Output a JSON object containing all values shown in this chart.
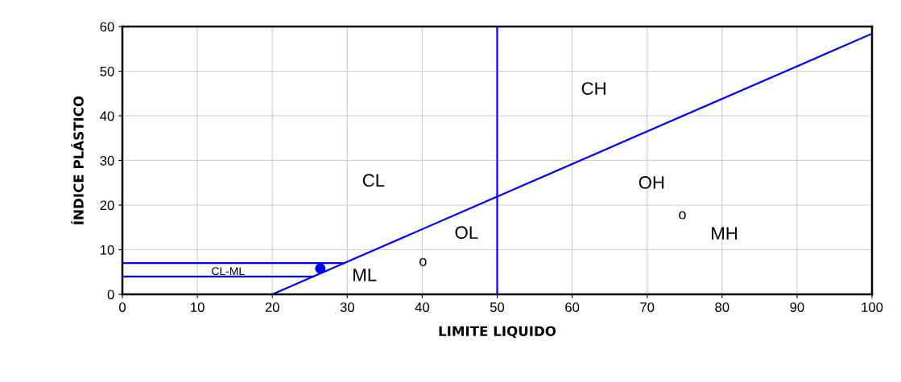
{
  "chart_data": {
    "type": "line",
    "xlabel": "LIMITE LIQUIDO",
    "ylabel": "ÍNDICE PLÁSTICO",
    "xlim": [
      0,
      100
    ],
    "ylim": [
      0,
      60
    ],
    "xticks": [
      0,
      10,
      20,
      30,
      40,
      50,
      60,
      70,
      80,
      90,
      100
    ],
    "yticks": [
      0,
      10,
      20,
      30,
      40,
      50,
      60
    ],
    "grid": true,
    "marker": "none",
    "line_style": "solid",
    "series": [
      {
        "color": "#0000ff",
        "x": [
          20,
          100
        ],
        "values": [
          0,
          58.4
        ]
      },
      {
        "color": "#0000ff",
        "x": [
          0,
          29.6
        ],
        "values": [
          7,
          7
        ]
      },
      {
        "color": "#0000ff",
        "x": [
          0,
          25.5
        ],
        "values": [
          4,
          4
        ]
      },
      {
        "type": "scatter",
        "color": "#0000ff",
        "marker": "circle",
        "x": [
          26.4
        ],
        "values": [
          5.8
        ]
      }
    ],
    "ref_lines": [
      {
        "axis": "x",
        "value": 50,
        "color": "#0000ff"
      }
    ],
    "annotations": [
      "CL",
      "CH",
      "OH",
      "MH",
      "OL",
      "ML",
      "CL-ML",
      "o",
      "o"
    ]
  }
}
